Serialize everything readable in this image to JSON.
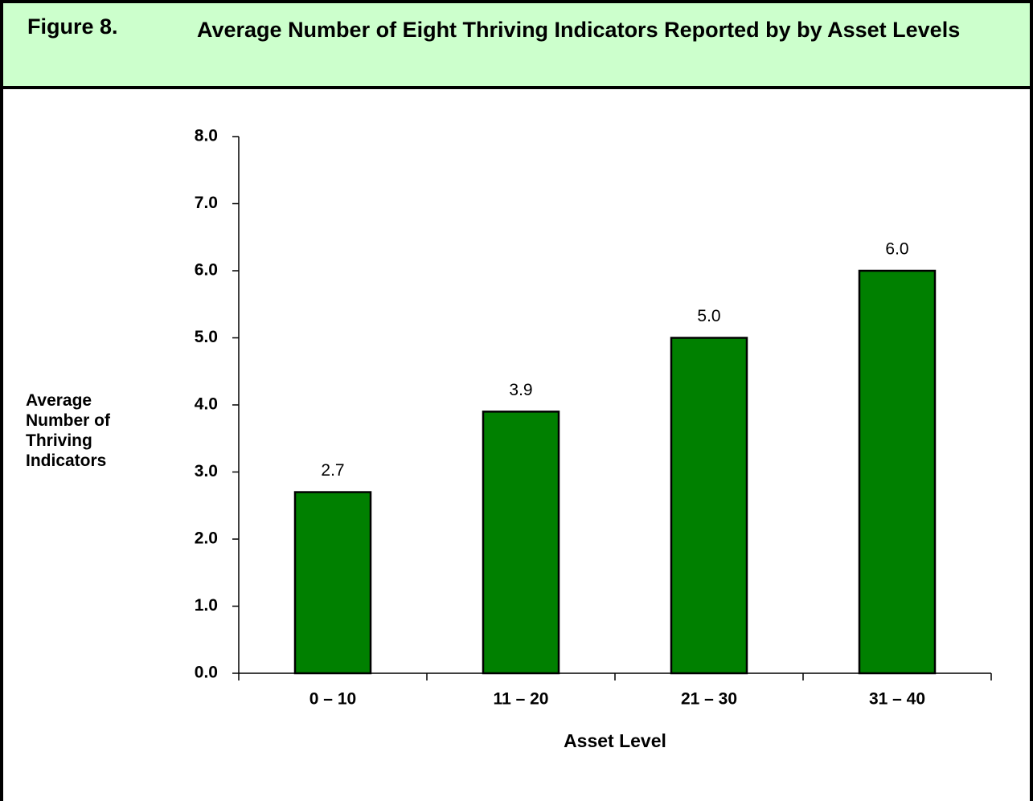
{
  "chart_data": {
    "type": "bar",
    "figure_label": "Figure 8.",
    "title": "Average Number of Eight Thriving Indicators Reported by by Asset Levels",
    "y_label": "Average Number of Thriving Indicators",
    "x_label": "Asset Level",
    "categories": [
      "0 – 10",
      "11 – 20",
      "21 – 30",
      "31 – 40"
    ],
    "values": [
      2.7,
      3.9,
      5.0,
      6.0
    ],
    "value_labels": [
      "2.7",
      "3.9",
      "5.0",
      "6.0"
    ],
    "color": "#008000",
    "ylim": [
      0,
      8
    ],
    "yticks": [
      {
        "value": 0,
        "label": "0.0"
      },
      {
        "value": 1,
        "label": "1.0"
      },
      {
        "value": 2,
        "label": "2.0"
      },
      {
        "value": 3,
        "label": "3.0"
      },
      {
        "value": 4,
        "label": "4.0"
      },
      {
        "value": 5,
        "label": "5.0"
      },
      {
        "value": 6,
        "label": "6.0"
      },
      {
        "value": 7,
        "label": "7.0"
      },
      {
        "value": 8,
        "label": "8.0"
      }
    ],
    "grid": false
  }
}
